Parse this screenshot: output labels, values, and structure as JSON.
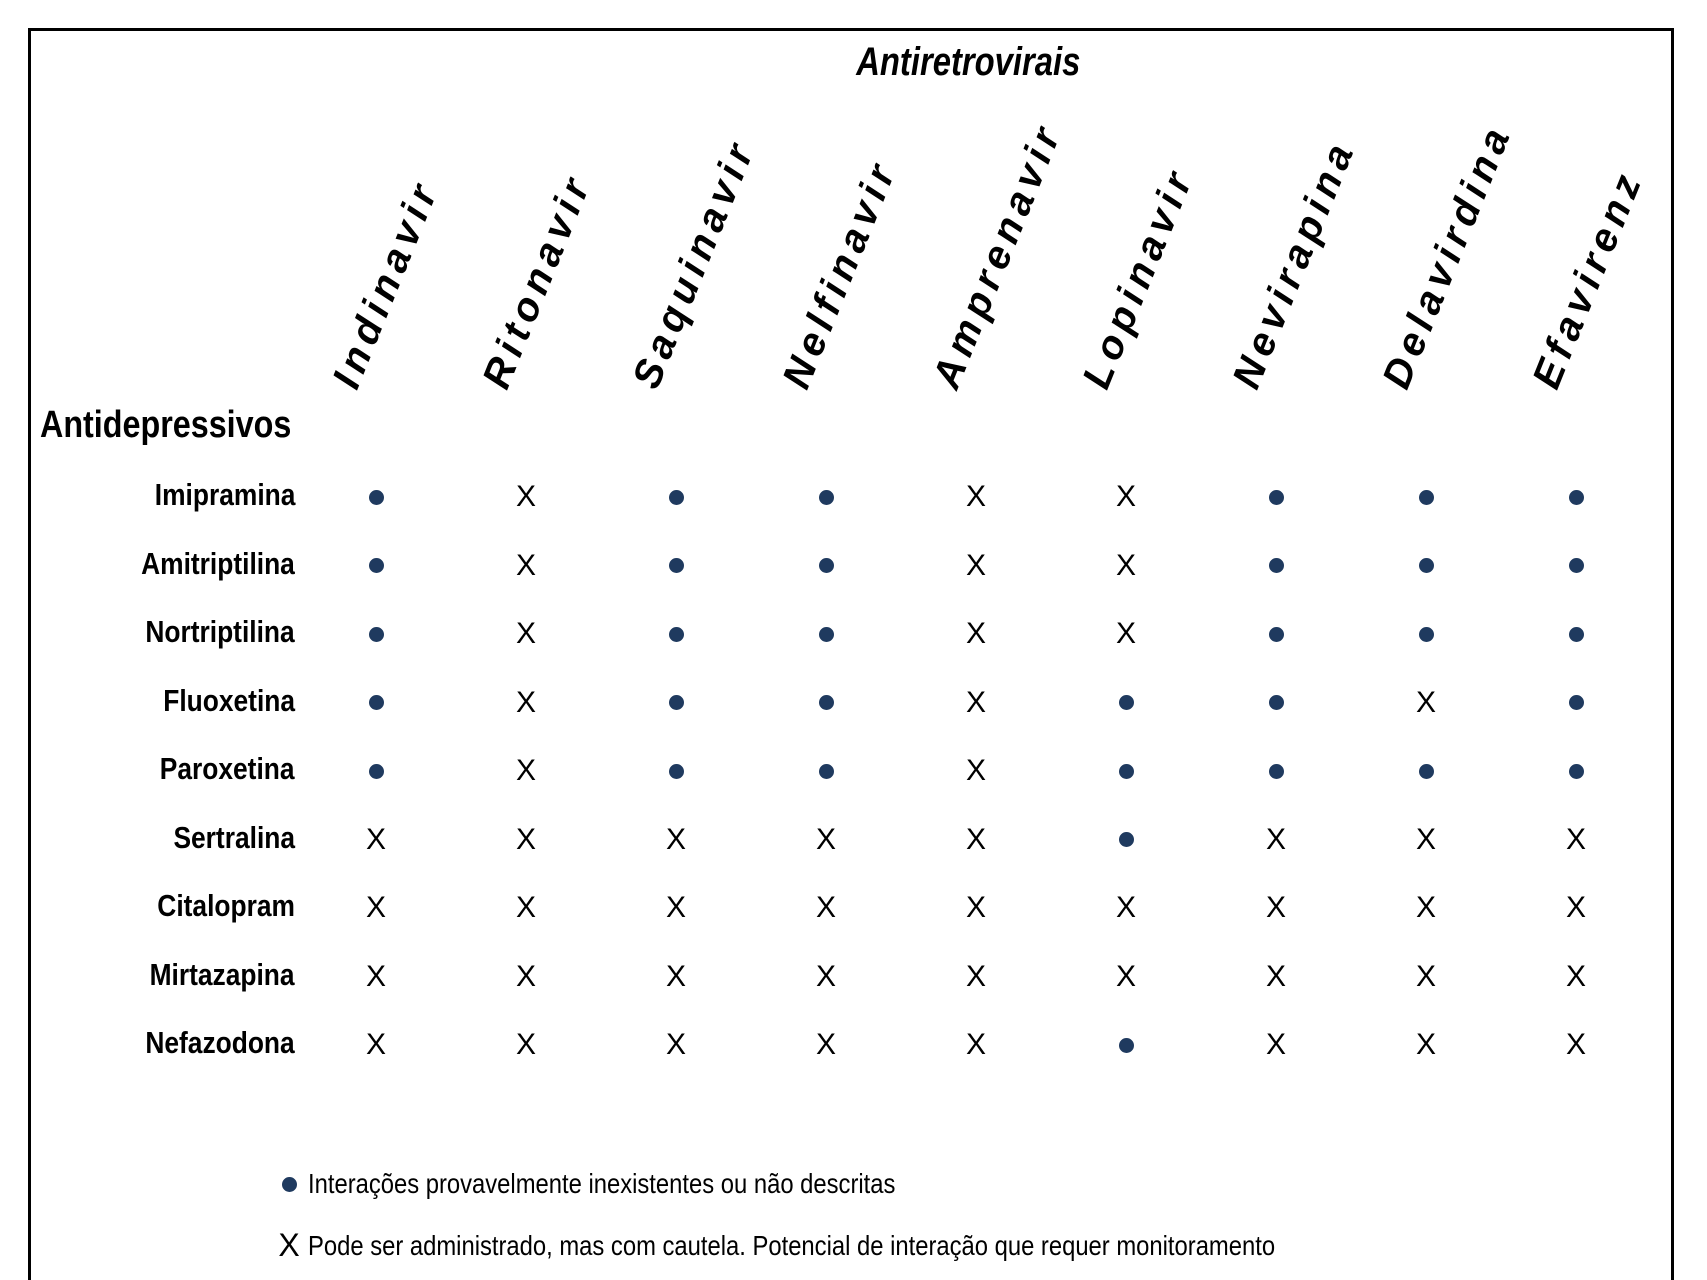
{
  "title": "Antiretrovirais",
  "row_header": "Antidepressivos",
  "columns": [
    "Indinavir",
    "Ritonavir",
    "Saquinavir",
    "Nelfinavir",
    "Amprenavir",
    "Lopinavir",
    "Nevirapina",
    "Delavirdina",
    "Efavirenz"
  ],
  "rows": [
    {
      "label": "Imipramina",
      "cells": [
        "dot",
        "x",
        "dot",
        "dot",
        "x",
        "x",
        "dot",
        "dot",
        "dot"
      ]
    },
    {
      "label": "Amitriptilina",
      "cells": [
        "dot",
        "x",
        "dot",
        "dot",
        "x",
        "x",
        "dot",
        "dot",
        "dot"
      ]
    },
    {
      "label": "Nortriptilina",
      "cells": [
        "dot",
        "x",
        "dot",
        "dot",
        "x",
        "x",
        "dot",
        "dot",
        "dot"
      ]
    },
    {
      "label": "Fluoxetina",
      "cells": [
        "dot",
        "x",
        "dot",
        "dot",
        "x",
        "dot",
        "dot",
        "x",
        "dot"
      ]
    },
    {
      "label": "Paroxetina",
      "cells": [
        "dot",
        "x",
        "dot",
        "dot",
        "x",
        "dot",
        "dot",
        "dot",
        "dot"
      ]
    },
    {
      "label": "Sertralina",
      "cells": [
        "x",
        "x",
        "x",
        "x",
        "x",
        "dot",
        "x",
        "x",
        "x"
      ]
    },
    {
      "label": "Citalopram",
      "cells": [
        "x",
        "x",
        "x",
        "x",
        "x",
        "x",
        "x",
        "x",
        "x"
      ]
    },
    {
      "label": "Mirtazapina",
      "cells": [
        "x",
        "x",
        "x",
        "x",
        "x",
        "x",
        "x",
        "x",
        "x"
      ]
    },
    {
      "label": "Nefazodona",
      "cells": [
        "x",
        "x",
        "x",
        "x",
        "x",
        "dot",
        "x",
        "x",
        "x"
      ]
    }
  ],
  "x_symbol": "X",
  "legend": {
    "dot_text": "Interações provavelmente inexistentes ou não descritas",
    "x_symbol": "X",
    "x_text": "Pode ser administrado, mas com cautela. Potencial de interação que requer monitoramento"
  },
  "colors": {
    "dot": "#1f3a5f",
    "text": "#000000",
    "border": "#000000"
  }
}
